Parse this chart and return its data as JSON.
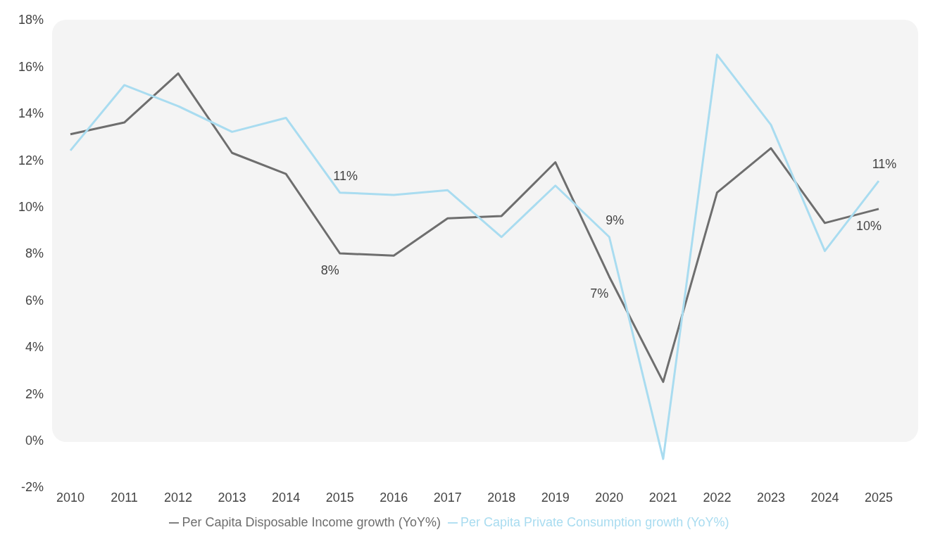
{
  "chart_data": {
    "type": "line",
    "categories": [
      "2010",
      "2011",
      "2012",
      "2013",
      "2014",
      "2015",
      "2016",
      "2017",
      "2018",
      "2019",
      "2020",
      "2021",
      "2022",
      "2023",
      "2024",
      "2025"
    ],
    "series": [
      {
        "name": "Per Capita Disposable Income growth (YoY%)",
        "color": "#6e6e6e",
        "values": [
          13.1,
          13.6,
          15.7,
          12.3,
          11.4,
          8.0,
          7.9,
          9.5,
          9.6,
          11.9,
          7.0,
          2.5,
          10.6,
          12.5,
          9.3,
          9.9
        ],
        "value_labels": [
          null,
          null,
          null,
          null,
          null,
          "8%",
          null,
          null,
          null,
          null,
          "7%",
          null,
          null,
          null,
          null,
          "10%"
        ]
      },
      {
        "name": "Per Capita Private Consumption growth (YoY%)",
        "color": "#a9dcf0",
        "values": [
          12.4,
          15.2,
          14.3,
          13.2,
          13.8,
          10.6,
          10.5,
          10.7,
          8.7,
          10.9,
          8.7,
          -0.8,
          16.5,
          13.5,
          8.1,
          11.1
        ],
        "value_labels": [
          null,
          null,
          null,
          null,
          null,
          "11%",
          null,
          null,
          null,
          null,
          "9%",
          null,
          null,
          null,
          null,
          "11%"
        ]
      }
    ],
    "ylim": [
      -2,
      18
    ],
    "yticks": [
      {
        "value": -2,
        "label": "-2%"
      },
      {
        "value": 0,
        "label": "0%"
      },
      {
        "value": 2,
        "label": "2%"
      },
      {
        "value": 4,
        "label": "4%"
      },
      {
        "value": 6,
        "label": "6%"
      },
      {
        "value": 8,
        "label": "8%"
      },
      {
        "value": 10,
        "label": "10%"
      },
      {
        "value": 12,
        "label": "12%"
      },
      {
        "value": 14,
        "label": "14%"
      },
      {
        "value": 16,
        "label": "16%"
      },
      {
        "value": 18,
        "label": "18%"
      }
    ],
    "grid": false,
    "legend": "bottom",
    "marker": "none",
    "line_style": "solid"
  }
}
